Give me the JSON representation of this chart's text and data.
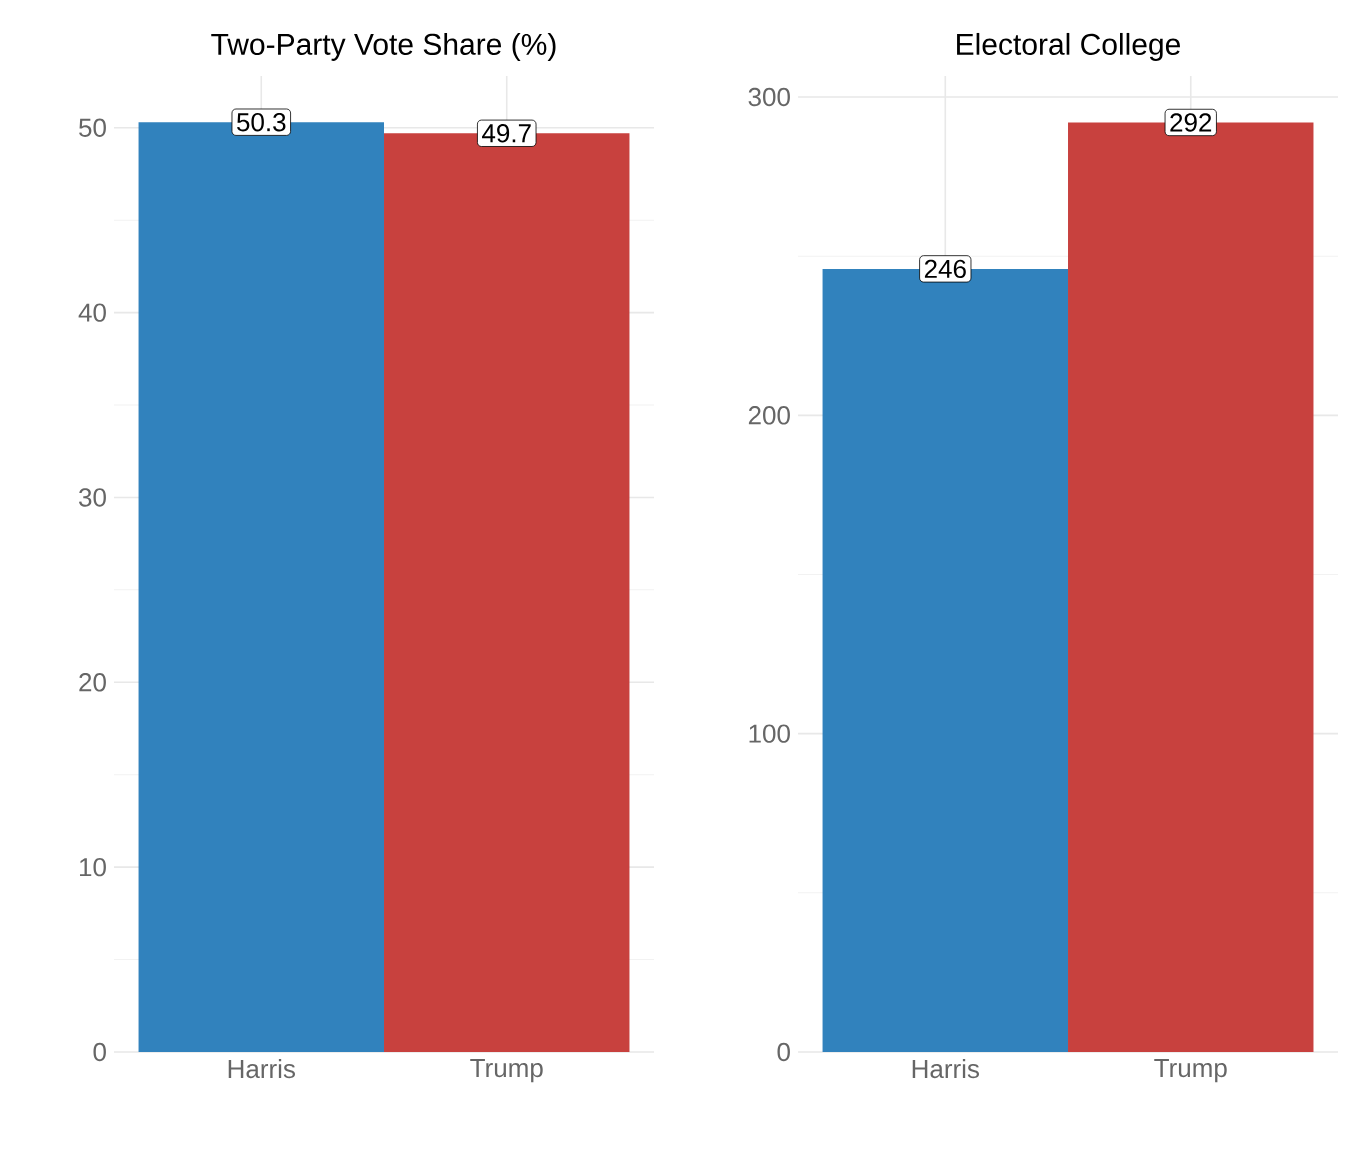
{
  "chart_data": [
    {
      "type": "bar",
      "title": "Two-Party Vote Share (%)",
      "categories": [
        "Harris",
        "Trump"
      ],
      "values": [
        50.3,
        49.7
      ],
      "colors": [
        "#3182bd",
        "#c8413e"
      ],
      "ylim": [
        0,
        52.8
      ],
      "yticks": [
        0,
        10,
        20,
        30,
        40,
        50
      ],
      "grid": true,
      "data_labels": true
    },
    {
      "type": "bar",
      "title": "Electoral College",
      "categories": [
        "Harris",
        "Trump"
      ],
      "values": [
        246,
        292
      ],
      "colors": [
        "#3182bd",
        "#c8413e"
      ],
      "ylim": [
        0,
        306.6
      ],
      "yticks": [
        0,
        100,
        200,
        300
      ],
      "grid": true,
      "data_labels": true
    }
  ]
}
